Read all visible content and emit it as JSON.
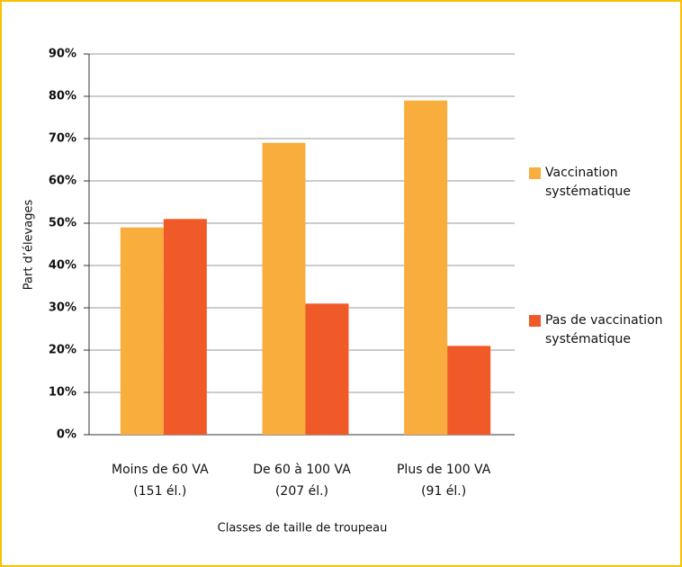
{
  "chart_data": {
    "type": "bar",
    "x_label": "Classes de taille de troupeau",
    "y_label": "Part d’élevages",
    "categories": [
      [
        "Moins de 60 VA",
        "(151 él.)"
      ],
      [
        "De 60 à 100 VA",
        "(207 él.)"
      ],
      [
        "Plus de 100 VA",
        "(91 él.)"
      ]
    ],
    "series": [
      {
        "name": "Vaccination systématique",
        "color": "#f9ad3c",
        "values": [
          49,
          69,
          79
        ]
      },
      {
        "name": "Pas de vaccination systématique",
        "color": "#f05a28",
        "values": [
          51,
          31,
          21
        ]
      }
    ],
    "ylim": [
      0,
      90
    ],
    "yticks": [
      {
        "value": 0,
        "label": "0%"
      },
      {
        "value": 10,
        "label": "10%"
      },
      {
        "value": 20,
        "label": "20%"
      },
      {
        "value": 30,
        "label": "30%"
      },
      {
        "value": 40,
        "label": "40%"
      },
      {
        "value": 50,
        "label": "50%"
      },
      {
        "value": 60,
        "label": "60%"
      },
      {
        "value": 70,
        "label": "70%"
      },
      {
        "value": 80,
        "label": "80%"
      },
      {
        "value": 90,
        "label": "90%"
      }
    ],
    "grid": true,
    "legend": "right"
  }
}
